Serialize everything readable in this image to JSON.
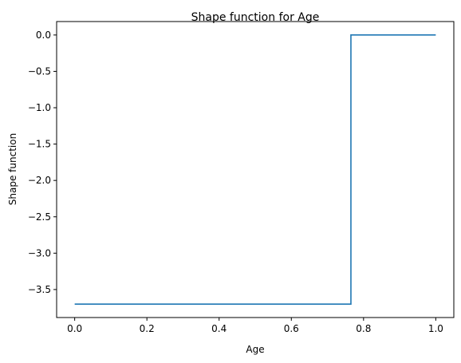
{
  "chart_data": {
    "type": "line",
    "title": "Shape function for Age",
    "xlabel": "Age",
    "ylabel": "Shape function",
    "xlim": [
      -0.05,
      1.05
    ],
    "ylim": [
      -3.885,
      0.185
    ],
    "xticks": [
      0.0,
      0.2,
      0.4,
      0.6,
      0.8,
      1.0
    ],
    "xtick_labels": [
      "0.0",
      "0.2",
      "0.4",
      "0.6",
      "0.8",
      "1.0"
    ],
    "yticks": [
      0.0,
      -0.5,
      -1.0,
      -1.5,
      -2.0,
      -2.5,
      -3.0,
      -3.5
    ],
    "ytick_labels": [
      "0.0",
      "−0.5",
      "−1.0",
      "−1.5",
      "−2.0",
      "−2.5",
      "−3.0",
      "−3.5"
    ],
    "grid": false,
    "legend": "none",
    "series": [
      {
        "color": "#1f77b4",
        "step": true,
        "x": [
          0.0,
          0.765,
          0.765,
          1.0
        ],
        "y": [
          -3.7,
          -3.7,
          0.0,
          0.0
        ]
      }
    ]
  }
}
